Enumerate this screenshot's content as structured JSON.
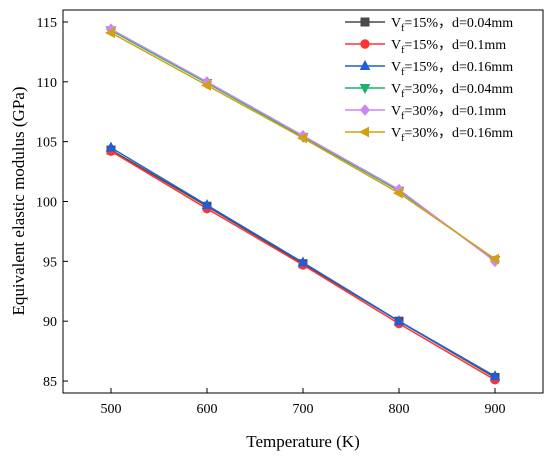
{
  "chart_data": {
    "type": "line",
    "xlabel": "Temperature (K)",
    "ylabel": "Equivalent elastic modulus (GPa)",
    "xlim": [
      450,
      950
    ],
    "ylim": [
      84,
      116
    ],
    "x": [
      500,
      600,
      700,
      800,
      900
    ],
    "x_ticks": [
      "500",
      "600",
      "700",
      "800",
      "900"
    ],
    "y_ticks": [
      "85",
      "90",
      "95",
      "100",
      "105",
      "110",
      "115"
    ],
    "legend_position": "top-right",
    "series": [
      {
        "name_main": "V",
        "name_sub": "f",
        "name_rest": "=15%，d=0.04mm",
        "color": "#4a4a4a",
        "marker": "square",
        "values": [
          104.3,
          99.6,
          94.8,
          90.0,
          85.3
        ]
      },
      {
        "name_main": "V",
        "name_sub": "f",
        "name_rest": "=15%，d=0.1mm",
        "color": "#ff3333",
        "marker": "circle",
        "values": [
          104.2,
          99.4,
          94.7,
          89.8,
          85.1
        ]
      },
      {
        "name_main": "V",
        "name_sub": "f",
        "name_rest": "=15%，d=0.16mm",
        "color": "#1f5fd8",
        "marker": "triangle-up",
        "values": [
          104.5,
          99.7,
          94.9,
          90.0,
          85.4
        ]
      },
      {
        "name_main": "V",
        "name_sub": "f",
        "name_rest": "=30%，d=0.04mm",
        "color": "#19b36b",
        "marker": "triangle-down",
        "values": [
          114.3,
          109.9,
          105.4,
          100.9,
          95.1
        ]
      },
      {
        "name_main": "V",
        "name_sub": "f",
        "name_rest": "=30%，d=0.1mm",
        "color": "#cc88ee",
        "marker": "diamond",
        "values": [
          114.4,
          110.0,
          105.5,
          101.0,
          95.0
        ]
      },
      {
        "name_main": "V",
        "name_sub": "f",
        "name_rest": "=30%，d=0.16mm",
        "color": "#d4a010",
        "marker": "triangle-left",
        "values": [
          114.1,
          109.7,
          105.3,
          100.7,
          95.2
        ]
      }
    ]
  }
}
